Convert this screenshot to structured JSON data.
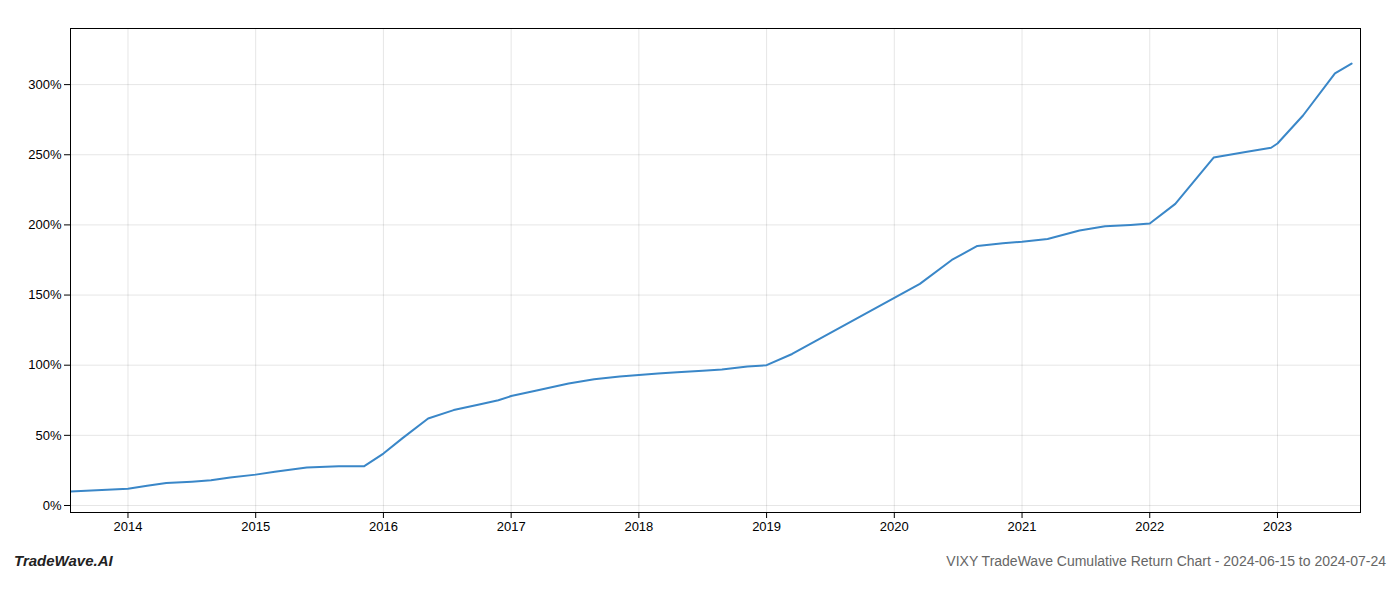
{
  "chart_data": {
    "type": "line",
    "title": "VIXY TradeWave Cumulative Return Chart - 2024-06-15 to 2024-07-24",
    "annotations": [
      "TradeWave.AI"
    ],
    "x": [
      2013.55,
      2014.0,
      2014.15,
      2014.3,
      2014.5,
      2014.65,
      2014.8,
      2015.0,
      2015.15,
      2015.4,
      2015.65,
      2015.85,
      2016.0,
      2016.15,
      2016.35,
      2016.55,
      2016.75,
      2016.9,
      2017.0,
      2017.2,
      2017.45,
      2017.65,
      2017.85,
      2018.0,
      2018.15,
      2018.3,
      2018.5,
      2018.65,
      2018.85,
      2019.0,
      2019.2,
      2019.4,
      2019.6,
      2019.8,
      2020.0,
      2020.2,
      2020.45,
      2020.65,
      2020.85,
      2021.0,
      2021.2,
      2021.45,
      2021.65,
      2021.85,
      2022.0,
      2022.2,
      2022.5,
      2022.75,
      2022.95,
      2023.0,
      2023.2,
      2023.45,
      2023.58
    ],
    "values": [
      10,
      12,
      14,
      16,
      17,
      18,
      20,
      22,
      24,
      27,
      28,
      28,
      37,
      48,
      62,
      68,
      72,
      75,
      78,
      82,
      87,
      90,
      92,
      93,
      94,
      95,
      96,
      97,
      99,
      100,
      108,
      118,
      128,
      138,
      148,
      158,
      175,
      185,
      187,
      188,
      190,
      196,
      199,
      200,
      201,
      215,
      248,
      252,
      255,
      258,
      278,
      308,
      315
    ],
    "color": "#3a87c8",
    "xlim": [
      2013.55,
      2023.65
    ],
    "ylim": [
      -5,
      340
    ],
    "xticks": [
      2014,
      2015,
      2016,
      2017,
      2018,
      2019,
      2020,
      2021,
      2022,
      2023
    ],
    "yticks": [
      {
        "value": 0,
        "label": "0%"
      },
      {
        "value": 50,
        "label": "50%"
      },
      {
        "value": 100,
        "label": "100%"
      },
      {
        "value": 150,
        "label": "150%"
      },
      {
        "value": 200,
        "label": "200%"
      },
      {
        "value": 250,
        "label": "250%"
      },
      {
        "value": 300,
        "label": "300%"
      }
    ],
    "grid": true
  }
}
